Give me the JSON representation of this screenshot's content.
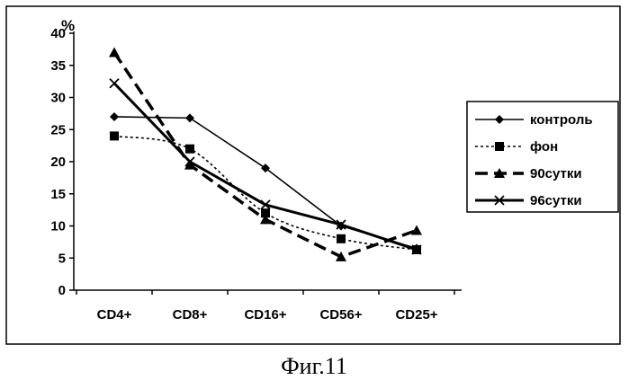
{
  "chart_data": {
    "type": "line",
    "categories": [
      "CD4+",
      "CD8+",
      "CD16+",
      "CD56+",
      "CD25+"
    ],
    "series": [
      {
        "name": "контроль",
        "values": [
          27,
          26.8,
          19,
          10,
          6.5
        ],
        "marker": "diamond",
        "line": "solid-thin"
      },
      {
        "name": "фон",
        "values": [
          24,
          22,
          12,
          8,
          6.3
        ],
        "marker": "square",
        "line": "dotted-smooth"
      },
      {
        "name": "90сутки",
        "values": [
          37,
          19.5,
          11,
          5.2,
          9.3
        ],
        "marker": "triangle",
        "line": "dashed-thick"
      },
      {
        "name": "96сутки",
        "values": [
          32.2,
          20,
          13.3,
          10.2,
          6.3
        ],
        "marker": "x",
        "line": "solid-thick"
      }
    ],
    "ylim": [
      0,
      40
    ],
    "yticks": [
      0,
      5,
      10,
      15,
      20,
      25,
      30,
      35,
      40
    ],
    "yunit": "%",
    "grid": false,
    "legend": "right"
  },
  "caption": "Фиг.11",
  "colors": {
    "ink": "#000000",
    "background": "#ffffff"
  }
}
